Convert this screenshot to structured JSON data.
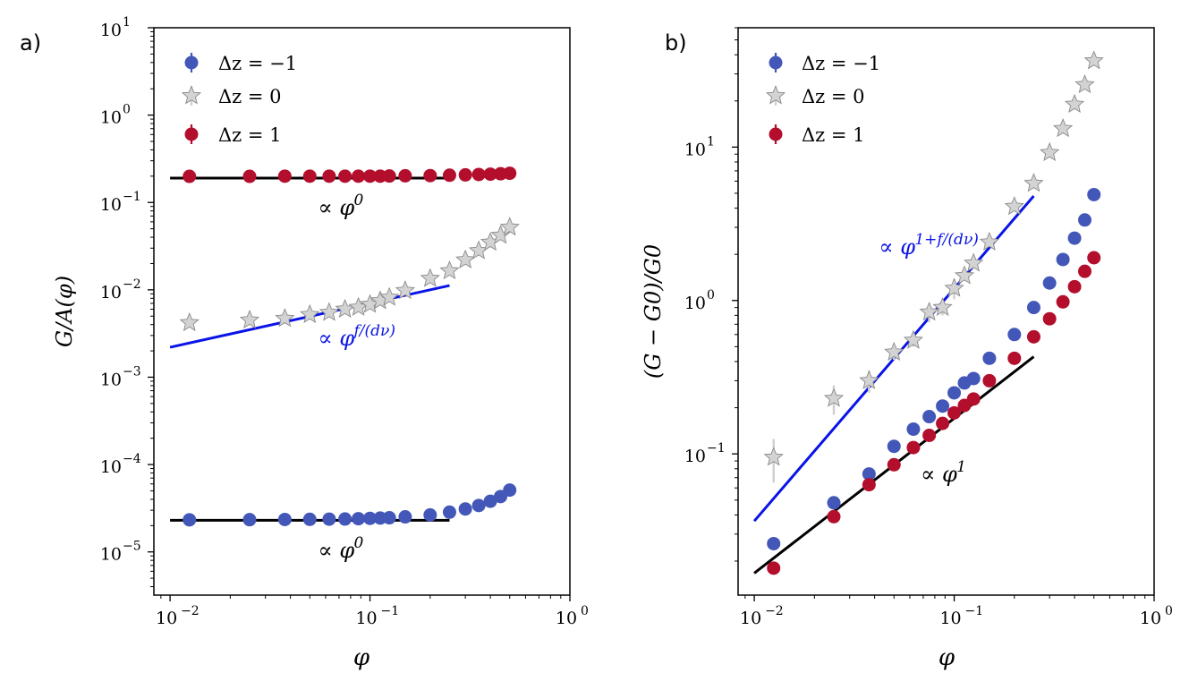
{
  "panels": [
    {
      "panel_label": "a)",
      "ylabel": "G/A(φ)",
      "xlabel": "φ",
      "legend_labels": [
        "Δz = −1",
        "Δz = 0",
        "Δz = 1"
      ]
    },
    {
      "panel_label": "b)",
      "ylabel": "(G − G0)/G0",
      "xlabel": "φ",
      "legend_labels": [
        "Δz = −1",
        "Δz = 0",
        "Δz = 1"
      ]
    }
  ],
  "colors": {
    "dz_minus1": "#4257b8",
    "dz_0": "#d3d3d3",
    "dz_plus1": "#b30e2c",
    "fit_black": "#000000",
    "fit_blue": "#0a14e6"
  },
  "chart_data": [
    {
      "type": "scatter",
      "xscale": "log",
      "yscale": "log",
      "xlim": [
        0.0083,
        1.0
      ],
      "ylim": [
        3.2e-06,
        10
      ],
      "xlabel": "φ",
      "ylabel": "G/A(φ)",
      "x_ticks": [
        0.01,
        0.1,
        1
      ],
      "x_tick_labels": [
        "10",
        "10",
        "10"
      ],
      "x_tick_exps": [
        "−2",
        "−1",
        "0"
      ],
      "y_ticks": [
        1e-05,
        0.0001,
        0.001,
        0.01,
        0.1,
        1,
        10
      ],
      "y_tick_labels": [
        "10",
        "10",
        "10",
        "10",
        "10",
        "10",
        "10"
      ],
      "y_tick_exps": [
        "−5",
        "−4",
        "−3",
        "−2",
        "−1",
        "0",
        "1"
      ],
      "legend_position": "top-left",
      "series": [
        {
          "name": "Δz = −1",
          "marker": "circle",
          "color_key": "dz_minus1",
          "x": [
            0.0125,
            0.025,
            0.0375,
            0.05,
            0.0625,
            0.075,
            0.0875,
            0.1,
            0.1125,
            0.125,
            0.15,
            0.2,
            0.25,
            0.3,
            0.35,
            0.4,
            0.45,
            0.5
          ],
          "y": [
            2.33e-05,
            2.34e-05,
            2.35e-05,
            2.36e-05,
            2.37e-05,
            2.38e-05,
            2.4e-05,
            2.42e-05,
            2.44e-05,
            2.46e-05,
            2.52e-05,
            2.65e-05,
            2.85e-05,
            3.1e-05,
            3.4e-05,
            3.8e-05,
            4.3e-05,
            5.1e-05
          ]
        },
        {
          "name": "Δz = 0",
          "marker": "star",
          "color_key": "dz_0",
          "x": [
            0.0125,
            0.025,
            0.0375,
            0.05,
            0.0625,
            0.075,
            0.0875,
            0.1,
            0.1125,
            0.125,
            0.15,
            0.2,
            0.25,
            0.3,
            0.35,
            0.4,
            0.45,
            0.5
          ],
          "y": [
            0.0042,
            0.0045,
            0.0047,
            0.0052,
            0.0055,
            0.006,
            0.0063,
            0.0068,
            0.0075,
            0.0082,
            0.0098,
            0.0135,
            0.0165,
            0.022,
            0.028,
            0.035,
            0.042,
            0.052
          ]
        },
        {
          "name": "Δz = 1",
          "marker": "circle",
          "color_key": "dz_plus1",
          "x": [
            0.0125,
            0.025,
            0.0375,
            0.05,
            0.0625,
            0.075,
            0.0875,
            0.1,
            0.1125,
            0.125,
            0.15,
            0.2,
            0.25,
            0.3,
            0.35,
            0.4,
            0.45,
            0.5
          ],
          "y": [
            0.199,
            0.199,
            0.2,
            0.2,
            0.2,
            0.2,
            0.2,
            0.2,
            0.2,
            0.201,
            0.202,
            0.203,
            0.205,
            0.207,
            0.209,
            0.211,
            0.213,
            0.216
          ]
        }
      ],
      "fit_lines": [
        {
          "x": [
            0.01,
            0.25
          ],
          "y": [
            0.19,
            0.19
          ],
          "color_key": "fit_black",
          "label": "∝ φ",
          "label_sup": "0",
          "label_anchor": [
            0.055,
            0.072
          ]
        },
        {
          "x": [
            0.01,
            0.25
          ],
          "y": [
            0.0022,
            0.0112
          ],
          "color_key": "fit_blue",
          "label": "∝ φ",
          "label_sup": "f/(dν)",
          "label_anchor": [
            0.055,
            0.0023
          ]
        },
        {
          "x": [
            0.01,
            0.25
          ],
          "y": [
            2.3e-05,
            2.3e-05
          ],
          "color_key": "fit_black",
          "label": "∝ φ",
          "label_sup": "0",
          "label_anchor": [
            0.055,
            8.6e-06
          ]
        }
      ]
    },
    {
      "type": "scatter",
      "xscale": "log",
      "yscale": "log",
      "xlim": [
        0.0083,
        1.0
      ],
      "ylim": [
        0.012,
        60
      ],
      "xlabel": "φ",
      "ylabel": "(G − G0)/G0",
      "x_ticks": [
        0.01,
        0.1,
        1
      ],
      "x_tick_labels": [
        "10",
        "10",
        "10"
      ],
      "x_tick_exps": [
        "−2",
        "−1",
        "0"
      ],
      "y_ticks": [
        0.1,
        1,
        10
      ],
      "y_tick_labels": [
        "10",
        "10",
        "10"
      ],
      "y_tick_exps": [
        "−1",
        "0",
        "1"
      ],
      "legend_position": "top-left",
      "series": [
        {
          "name": "Δz = −1",
          "marker": "circle",
          "color_key": "dz_minus1",
          "x": [
            0.0125,
            0.025,
            0.0375,
            0.05,
            0.0625,
            0.075,
            0.0875,
            0.1,
            0.1125,
            0.125,
            0.15,
            0.2,
            0.25,
            0.3,
            0.35,
            0.4,
            0.45,
            0.5
          ],
          "y": [
            0.026,
            0.048,
            0.074,
            0.112,
            0.145,
            0.175,
            0.205,
            0.25,
            0.29,
            0.31,
            0.42,
            0.6,
            0.9,
            1.3,
            1.85,
            2.55,
            3.35,
            4.9
          ]
        },
        {
          "name": "Δz = 0",
          "marker": "star",
          "color_key": "dz_0",
          "x": [
            0.0125,
            0.025,
            0.0375,
            0.05,
            0.0625,
            0.075,
            0.0875,
            0.1,
            0.1125,
            0.125,
            0.15,
            0.2,
            0.25,
            0.3,
            0.35,
            0.4,
            0.45,
            0.5
          ],
          "y": [
            0.095,
            0.23,
            0.3,
            0.46,
            0.55,
            0.84,
            0.9,
            1.2,
            1.45,
            1.75,
            2.4,
            4.1,
            5.8,
            9.2,
            13.2,
            19.0,
            25.5,
            36.5
          ],
          "yerr": [
            0.03,
            0.05,
            0.05,
            0.05,
            0.05,
            0.12,
            0.1,
            0.18,
            0.1,
            0.1,
            0.1,
            0.2,
            0.2,
            0.2,
            0.2,
            0.3,
            0.3,
            0.5
          ]
        },
        {
          "name": "Δz = 1",
          "marker": "circle",
          "color_key": "dz_plus1",
          "x": [
            0.0125,
            0.025,
            0.0375,
            0.05,
            0.0625,
            0.075,
            0.0875,
            0.1,
            0.1125,
            0.125,
            0.15,
            0.2,
            0.25,
            0.3,
            0.35,
            0.4,
            0.45,
            0.5
          ],
          "y": [
            0.018,
            0.039,
            0.063,
            0.085,
            0.11,
            0.132,
            0.158,
            0.185,
            0.207,
            0.228,
            0.3,
            0.42,
            0.58,
            0.76,
            0.98,
            1.23,
            1.55,
            1.9
          ]
        }
      ],
      "fit_lines": [
        {
          "x": [
            0.01,
            0.25
          ],
          "y": [
            0.0365,
            4.8
          ],
          "color_key": "fit_blue",
          "label": "∝ φ",
          "label_sup": "1+f/(dν)",
          "label_anchor": [
            0.042,
            2.0
          ]
        },
        {
          "x": [
            0.01,
            0.25
          ],
          "y": [
            0.0167,
            0.43
          ],
          "color_key": "fit_black",
          "label": "∝ φ",
          "label_sup": "1",
          "label_anchor": [
            0.068,
            0.066
          ]
        }
      ]
    }
  ]
}
